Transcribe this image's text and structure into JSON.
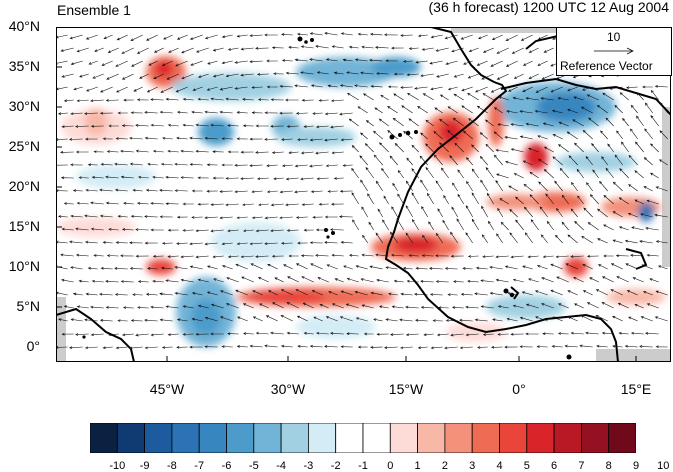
{
  "titles": {
    "left": "Ensemble 1",
    "right": "(36 h forecast) 1200 UTC 12 Aug 2004"
  },
  "axes": {
    "lat_labels": [
      "40°N",
      "35°N",
      "30°N",
      "25°N",
      "20°N",
      "15°N",
      "10°N",
      "5°N",
      "0°"
    ],
    "lon_labels": [
      "45°W",
      "30°W",
      "15°W",
      "0°",
      "15°E"
    ]
  },
  "reference_vector": {
    "value": "10",
    "label": "Reference Vector"
  },
  "colorbar": {
    "labels": [
      "-10",
      "-9",
      "-8",
      "-7",
      "-6",
      "-5",
      "-4",
      "-3",
      "-2",
      "-1",
      "0",
      "1",
      "2",
      "3",
      "4",
      "5",
      "6",
      "7",
      "8",
      "9",
      "10"
    ],
    "colors": [
      "#0b2142",
      "#0f3b72",
      "#1b5b9e",
      "#2c73b5",
      "#3786c0",
      "#4c9bcb",
      "#72b4d7",
      "#a1d0e2",
      "#d3ecf5",
      "#ffffff",
      "#ffffff",
      "#fddcd8",
      "#f8b8a8",
      "#f3917b",
      "#ef6c54",
      "#e9453a",
      "#d9242a",
      "#b91825",
      "#951020",
      "#70091a"
    ]
  },
  "map": {
    "colors": {
      "land_lines": "#000000",
      "vectors": "#000000",
      "missing": "#cccccc"
    }
  }
}
